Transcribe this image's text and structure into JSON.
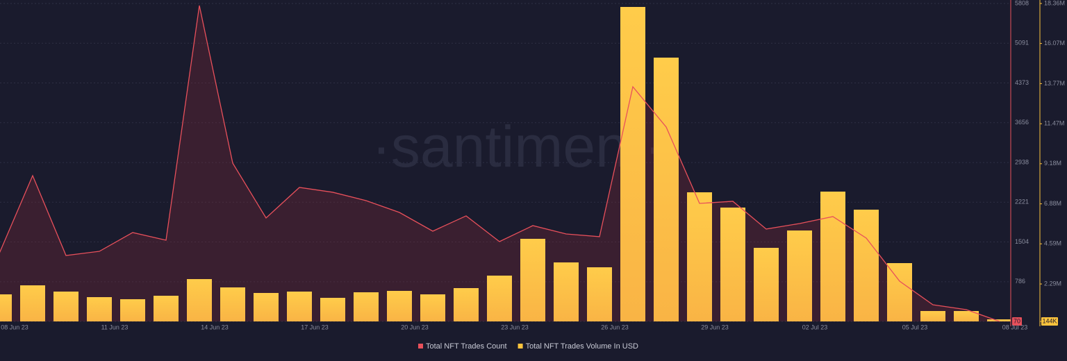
{
  "chart_data": {
    "type": "bar-line",
    "watermark": "·santiment·",
    "categories": [
      "08 Jun 23",
      null,
      null,
      "11 Jun 23",
      null,
      null,
      "14 Jun 23",
      null,
      null,
      "17 Jun 23",
      null,
      null,
      "20 Jun 23",
      null,
      null,
      "23 Jun 23",
      null,
      null,
      "26 Jun 23",
      null,
      null,
      "29 Jun 23",
      null,
      null,
      "02 Jul 23",
      null,
      null,
      "05 Jul 23",
      null,
      null,
      "08 Jul 23"
    ],
    "series": [
      {
        "name": "Total NFT Trades Count",
        "type": "line",
        "axis": "y",
        "color": "#e8505b",
        "values": [
          1298,
          2701,
          1260,
          1335,
          1674,
          1536,
          5771,
          2927,
          1937,
          2488,
          2401,
          2250,
          2037,
          1699,
          1975,
          1511,
          1799,
          1649,
          1599,
          4305,
          3578,
          2200,
          2238,
          1737,
          1837,
          1962,
          1574,
          797,
          371,
          283,
          70
        ]
      },
      {
        "name": "Total NFT Trades Volume In USD",
        "type": "bar",
        "axis": "y2",
        "color": "#ffc43d",
        "values": [
          1695000,
          2212000,
          1854000,
          1536000,
          1417000,
          1616000,
          2570000,
          2093000,
          1775000,
          1854000,
          1496000,
          1814000,
          1894000,
          1695000,
          2053000,
          2769000,
          4877000,
          3525000,
          3246000,
          18161000,
          15258000,
          7542000,
          6667000,
          4360000,
          5354000,
          7582000,
          6547000,
          3485000,
          741000,
          741000,
          263000
        ]
      }
    ],
    "ylim": [
      70,
      5808
    ],
    "yticks": [
      70,
      786,
      1504,
      2221,
      2938,
      3656,
      4373,
      5091,
      5808
    ],
    "y2lim": [
      144000,
      18360000
    ],
    "y2ticks": [
      {
        "value": 144000,
        "label": "144K"
      },
      {
        "value": 2290000,
        "label": "2.29M"
      },
      {
        "value": 4590000,
        "label": "4.59M"
      },
      {
        "value": 6880000,
        "label": "6.88M"
      },
      {
        "value": 9180000,
        "label": "9.18M"
      },
      {
        "value": 11470000,
        "label": "11.47M"
      },
      {
        "value": 13770000,
        "label": "13.77M"
      },
      {
        "value": 16070000,
        "label": "16.07M"
      },
      {
        "value": 18360000,
        "label": "18.36M"
      }
    ],
    "grid": true
  }
}
